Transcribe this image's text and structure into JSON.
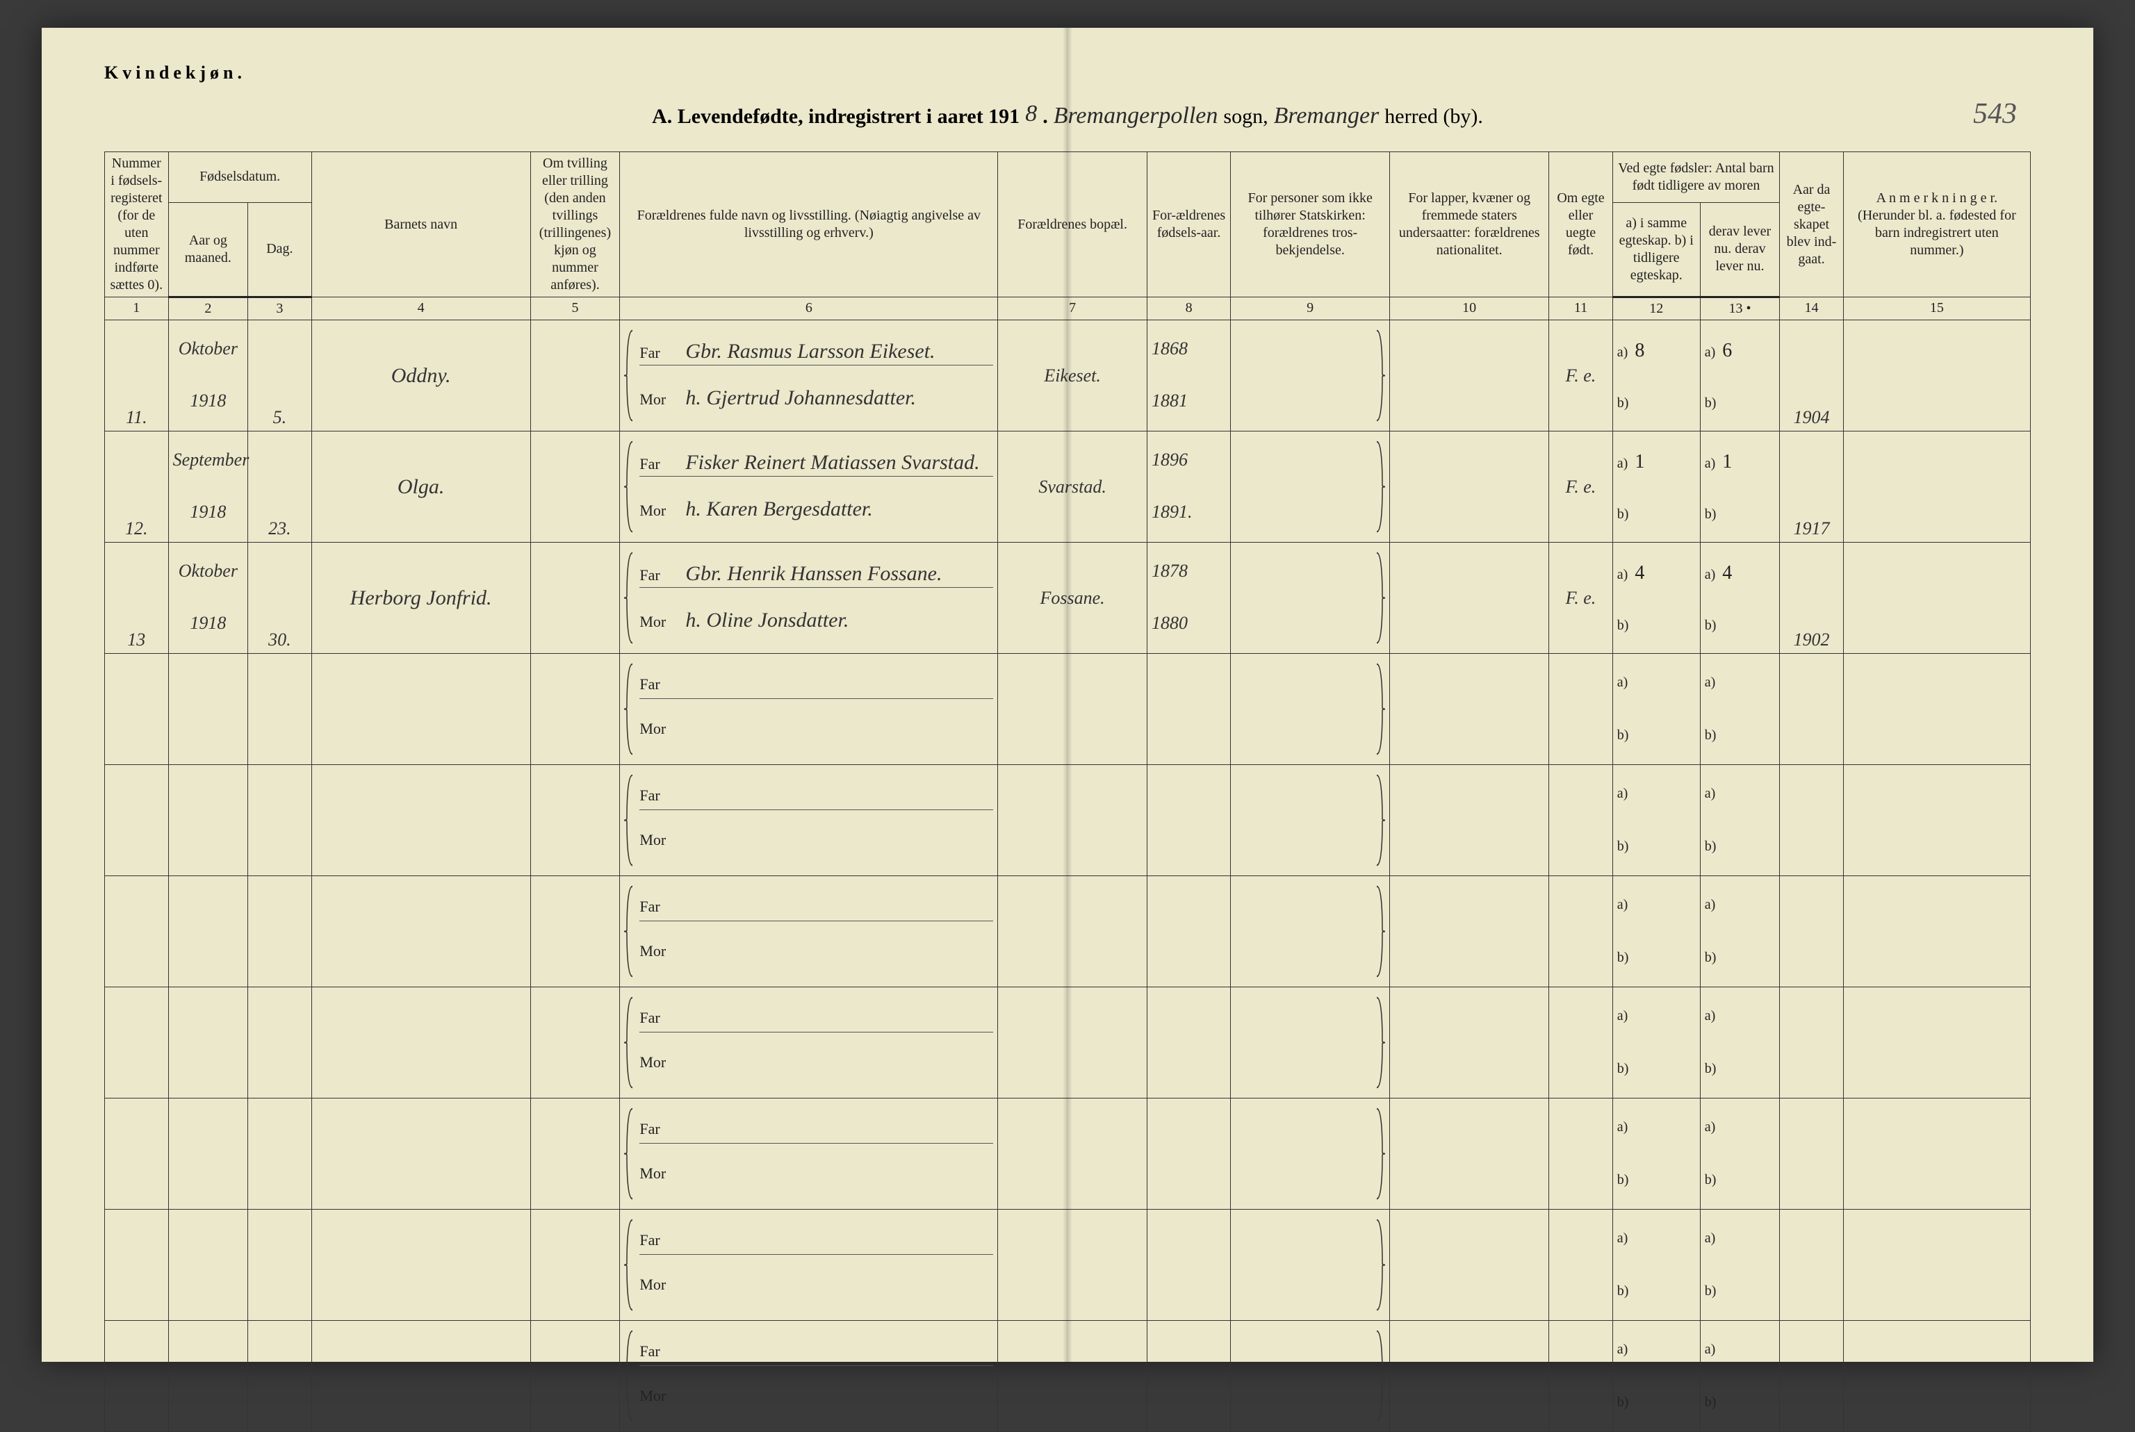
{
  "page": {
    "gender_heading": "Kvindekjøn.",
    "title_prefix": "A. Levendefødte, indregistrert i aaret 191",
    "year_digit": "8",
    "sep_dot": ".",
    "sogn_hand": "Bremangerpollen",
    "sogn_label": "sogn,",
    "herred_hand": "Bremanger",
    "herred_label": "herred (by).",
    "page_number": "543"
  },
  "headers": {
    "c1": "Nummer i fødsels-registeret (for de uten nummer indførte sættes 0).",
    "c23": "Fødselsdatum.",
    "c2": "Aar og maaned.",
    "c3": "Dag.",
    "c4": "Barnets navn",
    "c5": "Om tvilling eller trilling (den anden tvillings (trillingenes) kjøn og nummer anføres).",
    "c6": "Forældrenes fulde navn og livsstilling. (Nøiagtig angivelse av livsstilling og erhverv.)",
    "c7": "Forældrenes bopæl.",
    "c8": "For-ældrenes fødsels-aar.",
    "c9": "For personer som ikke tilhører Statskirken: forældrenes tros-bekjendelse.",
    "c10": "For lapper, kvæner og fremmede staters undersaatter: forældrenes nationalitet.",
    "c11": "Om egte eller uegte født.",
    "c1213_top": "Ved egte fødsler: Antal barn født tidligere av moren",
    "c12": "a) i samme egteskap. b) i tidligere egteskap.",
    "c13": "derav lever nu. derav lever nu.",
    "c14": "Aar da egte-skapet blev ind-gaat.",
    "c15": "A n m e r k n i n g e r. (Herunder bl. a. fødested for barn indregistrert uten nummer.)",
    "colnums": [
      "1",
      "2",
      "3",
      "4",
      "5",
      "6",
      "7",
      "8",
      "9",
      "10",
      "11",
      "12",
      "13 •",
      "14",
      "15"
    ],
    "far": "Far",
    "mor": "Mor",
    "a": "a)",
    "b": "b)"
  },
  "rows": [
    {
      "num": "11.",
      "month_top": "Oktober",
      "month_bot": "1918",
      "day": "5.",
      "name": "Oddny.",
      "far": "Gbr. Rasmus Larsson Eikeset.",
      "mor": "h. Gjertrud Johannesdatter.",
      "residence": "Eikeset.",
      "birth_far": "1868",
      "birth_mor": "1881",
      "legit": "F. e.",
      "a_val": "8",
      "a_der": "6",
      "b_val": "",
      "b_der": "",
      "marriage": "1904"
    },
    {
      "num": "12.",
      "month_top": "September",
      "month_bot": "1918",
      "day": "23.",
      "name": "Olga.",
      "far": "Fisker Reinert Matiassen Svarstad.",
      "mor": "h. Karen Bergesdatter.",
      "residence": "Svarstad.",
      "birth_far": "1896",
      "birth_mor": "1891.",
      "legit": "F. e.",
      "a_val": "1",
      "a_der": "1",
      "b_val": "",
      "b_der": "",
      "marriage": "1917"
    },
    {
      "num": "13",
      "month_top": "Oktober",
      "month_bot": "1918",
      "day": "30.",
      "name": "Herborg Jonfrid.",
      "far": "Gbr. Henrik Hanssen Fossane.",
      "mor": "h. Oline Jonsdatter.",
      "residence": "Fossane.",
      "birth_far": "1878",
      "birth_mor": "1880",
      "legit": "F. e.",
      "a_val": "4",
      "a_der": "4",
      "b_val": "",
      "b_der": "",
      "marriage": "1902"
    }
  ],
  "empty_rows": 7,
  "styling": {
    "page_bg": "#ece8cc",
    "ink": "#222222",
    "rule": "#333333",
    "script_font": "Brush Script MT"
  }
}
